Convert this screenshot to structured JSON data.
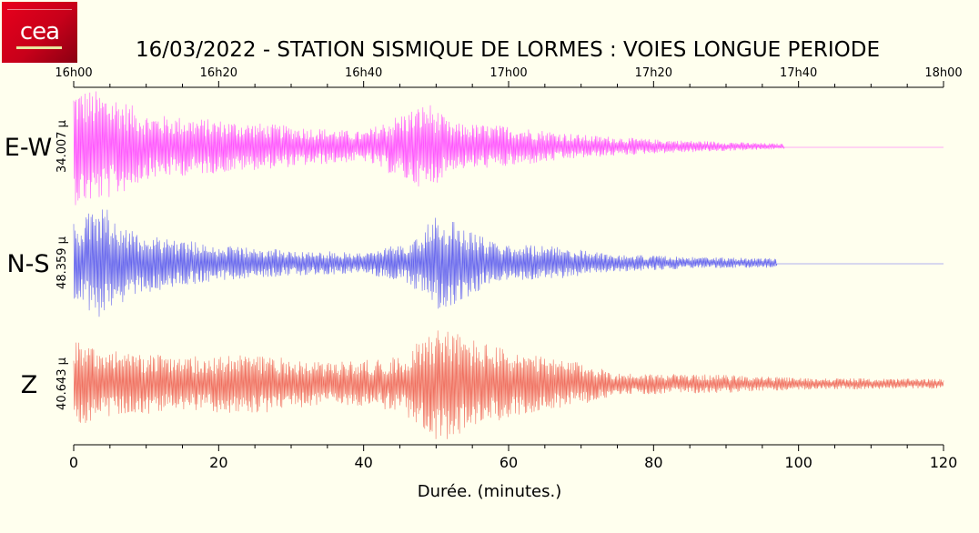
{
  "logo": {
    "text": "cea",
    "colors": {
      "primary": "#e8001c",
      "dark": "#8a0012"
    }
  },
  "chart_data": {
    "type": "line",
    "title": "16/03/2022  -  STATION SISMIQUE DE LORMES : VOIES LONGUE PERIODE",
    "xlabel": "Durée.  (minutes.)",
    "xlim": [
      0,
      120
    ],
    "xticks": [
      "0",
      "20",
      "40",
      "60",
      "80",
      "100",
      "120"
    ],
    "top_ticks": [
      "16h00",
      "16h20",
      "16h40",
      "17h00",
      "17h20",
      "17h40",
      "18h00"
    ],
    "series": [
      {
        "name": "E-W",
        "amplitude_label": "34.007 µ",
        "color": "#ff55ff",
        "end_minute": 98,
        "envelope_points": [
          [
            0,
            1.0
          ],
          [
            3,
            0.95
          ],
          [
            6,
            0.85
          ],
          [
            10,
            0.55
          ],
          [
            20,
            0.45
          ],
          [
            30,
            0.35
          ],
          [
            40,
            0.25
          ],
          [
            45,
            0.55
          ],
          [
            49,
            0.75
          ],
          [
            52,
            0.4
          ],
          [
            60,
            0.35
          ],
          [
            70,
            0.2
          ],
          [
            80,
            0.12
          ],
          [
            90,
            0.08
          ],
          [
            97,
            0.05
          ]
        ]
      },
      {
        "name": "N-S",
        "amplitude_label": "48.359 µ",
        "color": "#6666ee",
        "end_minute": 97,
        "envelope_points": [
          [
            0,
            0.7
          ],
          [
            4,
            1.0
          ],
          [
            8,
            0.55
          ],
          [
            20,
            0.3
          ],
          [
            30,
            0.22
          ],
          [
            40,
            0.18
          ],
          [
            46,
            0.35
          ],
          [
            50,
            0.8
          ],
          [
            53,
            0.7
          ],
          [
            58,
            0.35
          ],
          [
            65,
            0.3
          ],
          [
            75,
            0.15
          ],
          [
            85,
            0.1
          ],
          [
            97,
            0.08
          ]
        ]
      },
      {
        "name": "Z",
        "amplitude_label": "40.643 µ",
        "color": "#f07060",
        "end_minute": 120,
        "envelope_points": [
          [
            0,
            0.8
          ],
          [
            5,
            0.55
          ],
          [
            15,
            0.45
          ],
          [
            25,
            0.5
          ],
          [
            35,
            0.35
          ],
          [
            45,
            0.45
          ],
          [
            50,
            1.0
          ],
          [
            55,
            0.75
          ],
          [
            62,
            0.5
          ],
          [
            70,
            0.35
          ],
          [
            75,
            0.18
          ],
          [
            90,
            0.15
          ],
          [
            100,
            0.1
          ],
          [
            120,
            0.08
          ]
        ]
      }
    ]
  }
}
